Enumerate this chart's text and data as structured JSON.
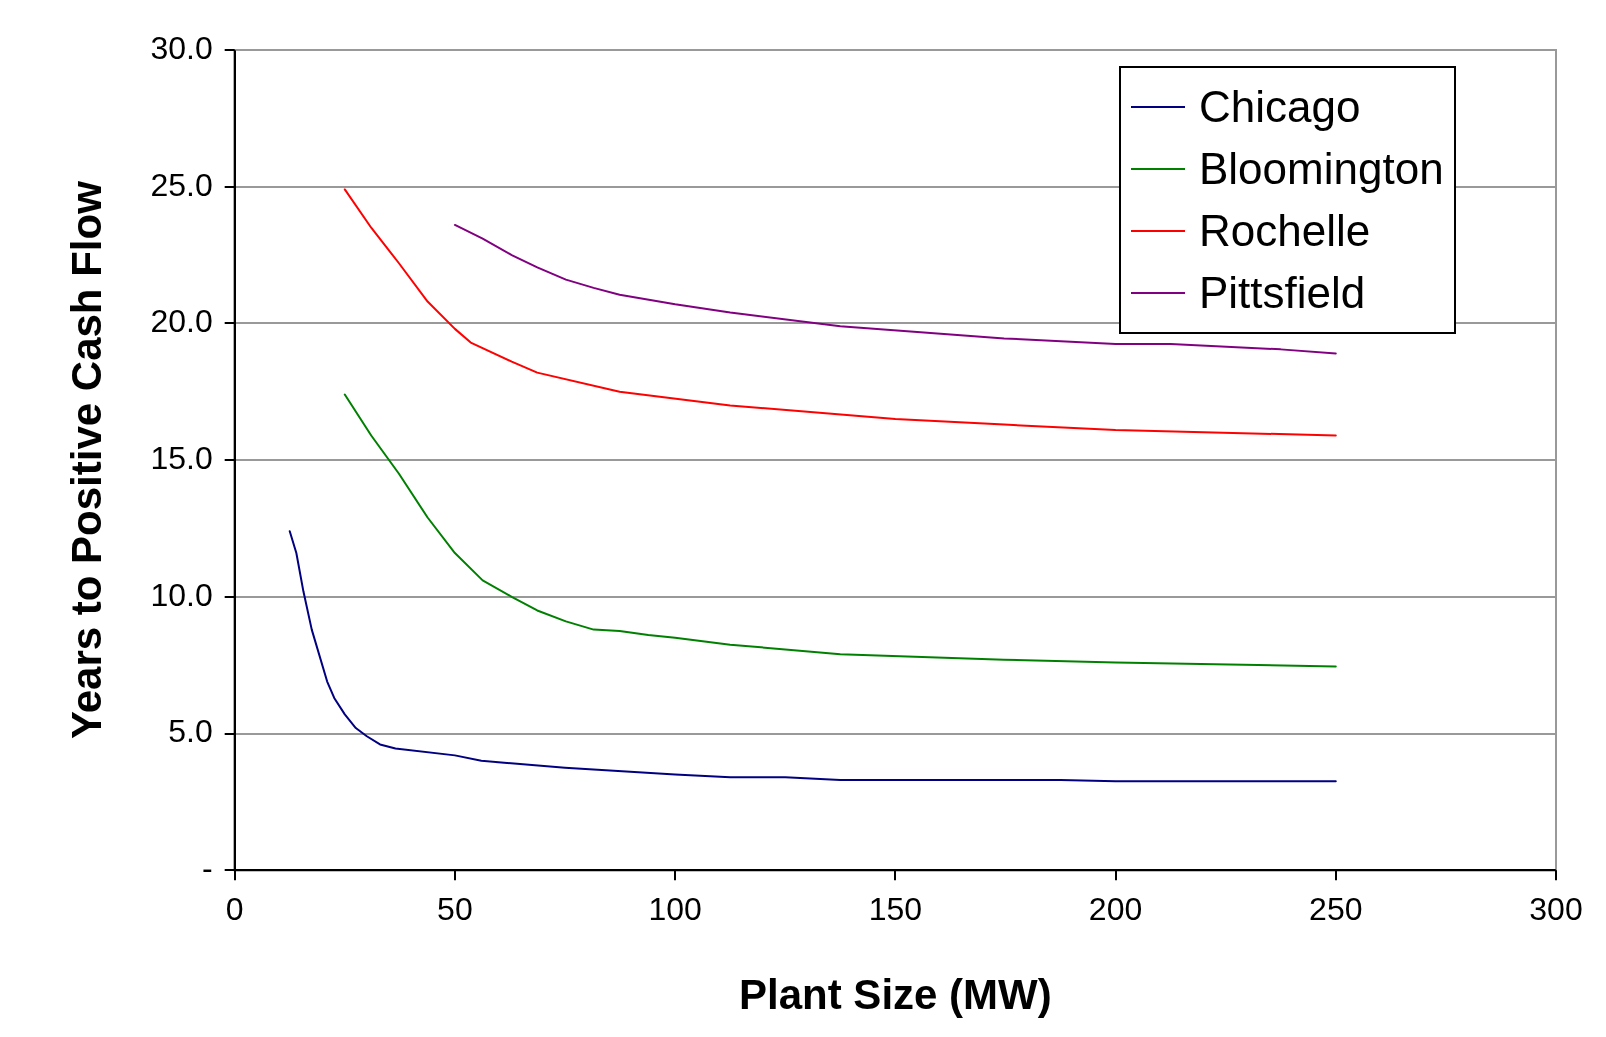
{
  "chart_data": {
    "type": "line",
    "xlabel": "Plant Size (MW)",
    "ylabel": "Years to Positive Cash Flow",
    "xlim": [
      0,
      300
    ],
    "xticks": [
      0,
      50,
      100,
      150,
      200,
      250,
      300
    ],
    "ylim": [
      0,
      30
    ],
    "yticks": [
      {
        "value": 0,
        "label": "-"
      },
      {
        "value": 5,
        "label": "5.0"
      },
      {
        "value": 10,
        "label": "10.0"
      },
      {
        "value": 15,
        "label": "15.0"
      },
      {
        "value": 20,
        "label": "20.0"
      },
      {
        "value": 25,
        "label": "25.0"
      },
      {
        "value": 30,
        "label": "30.0"
      }
    ],
    "grid": "y",
    "legend": "top right",
    "marker": "none",
    "line_style": "solid",
    "series": [
      {
        "name": "Chicago",
        "color": "#000080",
        "x": [
          12.5,
          14,
          15.6,
          17.5,
          21,
          22.6,
          25,
          27.5,
          30,
          33,
          36.5,
          50,
          56,
          75,
          100,
          112.5,
          125,
          137.5,
          187.5,
          200,
          250
        ],
        "values": [
          12.4,
          11.6,
          10.2,
          8.8,
          6.9,
          6.3,
          5.7,
          5.2,
          4.9,
          4.6,
          4.45,
          4.2,
          4.0,
          3.75,
          3.5,
          3.4,
          3.4,
          3.3,
          3.3,
          3.25,
          3.25
        ]
      },
      {
        "name": "Bloomington",
        "color": "#008000",
        "x": [
          25,
          31,
          37.3,
          43.8,
          50,
          56.3,
          62.9,
          68.7,
          75.2,
          81.5,
          87.4,
          93.9,
          100,
          112.5,
          137.5,
          174.7,
          200,
          250
        ],
        "values": [
          17.4,
          15.9,
          14.5,
          12.9,
          11.6,
          10.6,
          10.0,
          9.5,
          9.1,
          8.8,
          8.75,
          8.6,
          8.5,
          8.25,
          7.9,
          7.7,
          7.6,
          7.45
        ]
      },
      {
        "name": "Rochelle",
        "color": "#ff0000",
        "x": [
          25,
          31,
          37.3,
          43.8,
          50,
          53.6,
          62.9,
          68.7,
          87.4,
          112.5,
          150,
          174.7,
          200,
          250
        ],
        "values": [
          24.9,
          23.5,
          22.2,
          20.8,
          19.8,
          19.3,
          18.6,
          18.2,
          17.5,
          17.0,
          16.5,
          16.3,
          16.1,
          15.9
        ]
      },
      {
        "name": "Pittsfield",
        "color": "#800080",
        "x": [
          50,
          56.3,
          62.9,
          68.7,
          75.2,
          81.5,
          87.4,
          100,
          112.5,
          137.5,
          174.7,
          200,
          212.5,
          237.5,
          250
        ],
        "values": [
          23.6,
          23.1,
          22.5,
          22.05,
          21.6,
          21.3,
          21.05,
          20.7,
          20.4,
          19.9,
          19.45,
          19.25,
          19.25,
          19.05,
          18.9
        ]
      }
    ]
  }
}
